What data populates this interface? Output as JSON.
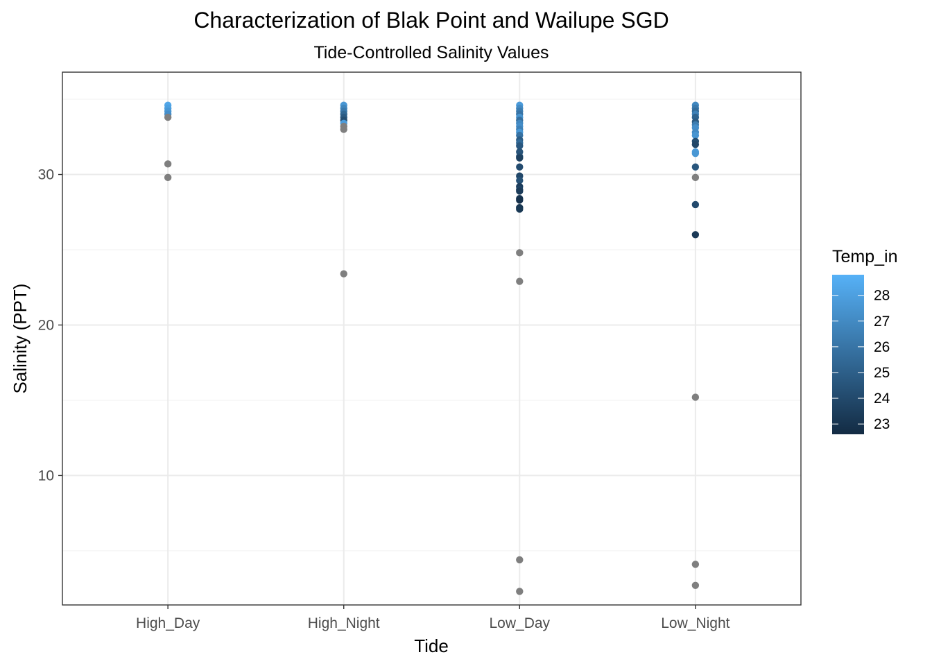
{
  "chart_data": {
    "type": "scatter",
    "title": "Characterization of Blak Point and Wailupe SGD",
    "subtitle": "Tide-Controlled Salinity Values",
    "xlabel": "Tide",
    "ylabel": "Salinity (PPT)",
    "categories": [
      "High_Day",
      "High_Night",
      "Low_Day",
      "Low_Night"
    ],
    "ylim": [
      1.4,
      36.8
    ],
    "y_ticks": [
      10,
      20,
      30
    ],
    "grid": true,
    "legend": {
      "title": "Temp_in",
      "placement": "right",
      "min": 22.6,
      "max": 28.8,
      "ticks": [
        23,
        24,
        25,
        26,
        27,
        28
      ],
      "low_color": "#132B43",
      "high_color": "#56B1F7",
      "na_color": "#7f7f7f"
    },
    "points": [
      {
        "x": "High_Day",
        "y": 34.6,
        "temp": 28.3
      },
      {
        "x": "High_Day",
        "y": 34.4,
        "temp": 28.0
      },
      {
        "x": "High_Day",
        "y": 34.2,
        "temp": 27.6
      },
      {
        "x": "High_Day",
        "y": 34.0,
        "temp": 27.2
      },
      {
        "x": "High_Day",
        "y": 33.8,
        "temp": null
      },
      {
        "x": "High_Day",
        "y": 30.7,
        "temp": null
      },
      {
        "x": "High_Day",
        "y": 29.8,
        "temp": null
      },
      {
        "x": "High_Night",
        "y": 34.6,
        "temp": 27.6
      },
      {
        "x": "High_Night",
        "y": 34.4,
        "temp": 26.8
      },
      {
        "x": "High_Night",
        "y": 34.2,
        "temp": 26.2
      },
      {
        "x": "High_Night",
        "y": 34.0,
        "temp": 25.4
      },
      {
        "x": "High_Night",
        "y": 33.8,
        "temp": 24.8
      },
      {
        "x": "High_Night",
        "y": 33.6,
        "temp": 24.2
      },
      {
        "x": "High_Night",
        "y": 33.4,
        "temp": 27.8
      },
      {
        "x": "High_Night",
        "y": 33.2,
        "temp": null
      },
      {
        "x": "High_Night",
        "y": 33.0,
        "temp": null
      },
      {
        "x": "High_Night",
        "y": 23.4,
        "temp": null
      },
      {
        "x": "Low_Day",
        "y": 34.6,
        "temp": 27.8
      },
      {
        "x": "Low_Day",
        "y": 34.4,
        "temp": 27.0
      },
      {
        "x": "Low_Day",
        "y": 34.2,
        "temp": 26.4
      },
      {
        "x": "Low_Day",
        "y": 34.0,
        "temp": 26.0
      },
      {
        "x": "Low_Day",
        "y": 33.8,
        "temp": 27.4
      },
      {
        "x": "Low_Day",
        "y": 33.6,
        "temp": 25.8
      },
      {
        "x": "Low_Day",
        "y": 33.4,
        "temp": 26.9
      },
      {
        "x": "Low_Day",
        "y": 33.2,
        "temp": 27.2
      },
      {
        "x": "Low_Day",
        "y": 33.0,
        "temp": 26.6
      },
      {
        "x": "Low_Day",
        "y": 32.8,
        "temp": 27.6
      },
      {
        "x": "Low_Day",
        "y": 32.6,
        "temp": 25.9
      },
      {
        "x": "Low_Day",
        "y": 32.3,
        "temp": 24.9
      },
      {
        "x": "Low_Day",
        "y": 32.1,
        "temp": 25.6
      },
      {
        "x": "Low_Day",
        "y": 31.9,
        "temp": 24.7
      },
      {
        "x": "Low_Day",
        "y": 31.5,
        "temp": 24.5
      },
      {
        "x": "Low_Day",
        "y": 31.2,
        "temp": 24.3
      },
      {
        "x": "Low_Day",
        "y": 31.1,
        "temp": 23.6
      },
      {
        "x": "Low_Day",
        "y": 30.5,
        "temp": 24.1
      },
      {
        "x": "Low_Day",
        "y": 29.9,
        "temp": 23.9
      },
      {
        "x": "Low_Day",
        "y": 29.6,
        "temp": 24.4
      },
      {
        "x": "Low_Day",
        "y": 29.2,
        "temp": 23.5
      },
      {
        "x": "Low_Day",
        "y": 29.0,
        "temp": 23.8
      },
      {
        "x": "Low_Day",
        "y": 28.9,
        "temp": 23.4
      },
      {
        "x": "Low_Day",
        "y": 28.4,
        "temp": 23.1
      },
      {
        "x": "Low_Day",
        "y": 28.3,
        "temp": 22.9
      },
      {
        "x": "Low_Day",
        "y": 27.8,
        "temp": 23.0
      },
      {
        "x": "Low_Day",
        "y": 27.7,
        "temp": 23.2
      },
      {
        "x": "Low_Day",
        "y": 24.8,
        "temp": null
      },
      {
        "x": "Low_Day",
        "y": 22.9,
        "temp": null
      },
      {
        "x": "Low_Day",
        "y": 4.4,
        "temp": null
      },
      {
        "x": "Low_Day",
        "y": 2.3,
        "temp": null
      },
      {
        "x": "Low_Night",
        "y": 34.6,
        "temp": 26.9
      },
      {
        "x": "Low_Night",
        "y": 34.4,
        "temp": 26.2
      },
      {
        "x": "Low_Night",
        "y": 34.2,
        "temp": 25.6
      },
      {
        "x": "Low_Night",
        "y": 34.0,
        "temp": 26.6
      },
      {
        "x": "Low_Night",
        "y": 33.8,
        "temp": 25.2
      },
      {
        "x": "Low_Night",
        "y": 33.5,
        "temp": 24.8
      },
      {
        "x": "Low_Night",
        "y": 33.3,
        "temp": 26.4
      },
      {
        "x": "Low_Night",
        "y": 33.1,
        "temp": 27.2
      },
      {
        "x": "Low_Night",
        "y": 32.8,
        "temp": 27.0
      },
      {
        "x": "Low_Night",
        "y": 32.6,
        "temp": 27.5
      },
      {
        "x": "Low_Night",
        "y": 32.2,
        "temp": 24.2
      },
      {
        "x": "Low_Night",
        "y": 32.0,
        "temp": 23.9
      },
      {
        "x": "Low_Night",
        "y": 31.5,
        "temp": 27.8
      },
      {
        "x": "Low_Night",
        "y": 31.4,
        "temp": 27.6
      },
      {
        "x": "Low_Night",
        "y": 30.5,
        "temp": 24.6
      },
      {
        "x": "Low_Night",
        "y": 29.8,
        "temp": null
      },
      {
        "x": "Low_Night",
        "y": 28.0,
        "temp": 24.0
      },
      {
        "x": "Low_Night",
        "y": 26.0,
        "temp": 23.3
      },
      {
        "x": "Low_Night",
        "y": 15.2,
        "temp": null
      },
      {
        "x": "Low_Night",
        "y": 4.1,
        "temp": null
      },
      {
        "x": "Low_Night",
        "y": 2.7,
        "temp": null
      }
    ]
  }
}
